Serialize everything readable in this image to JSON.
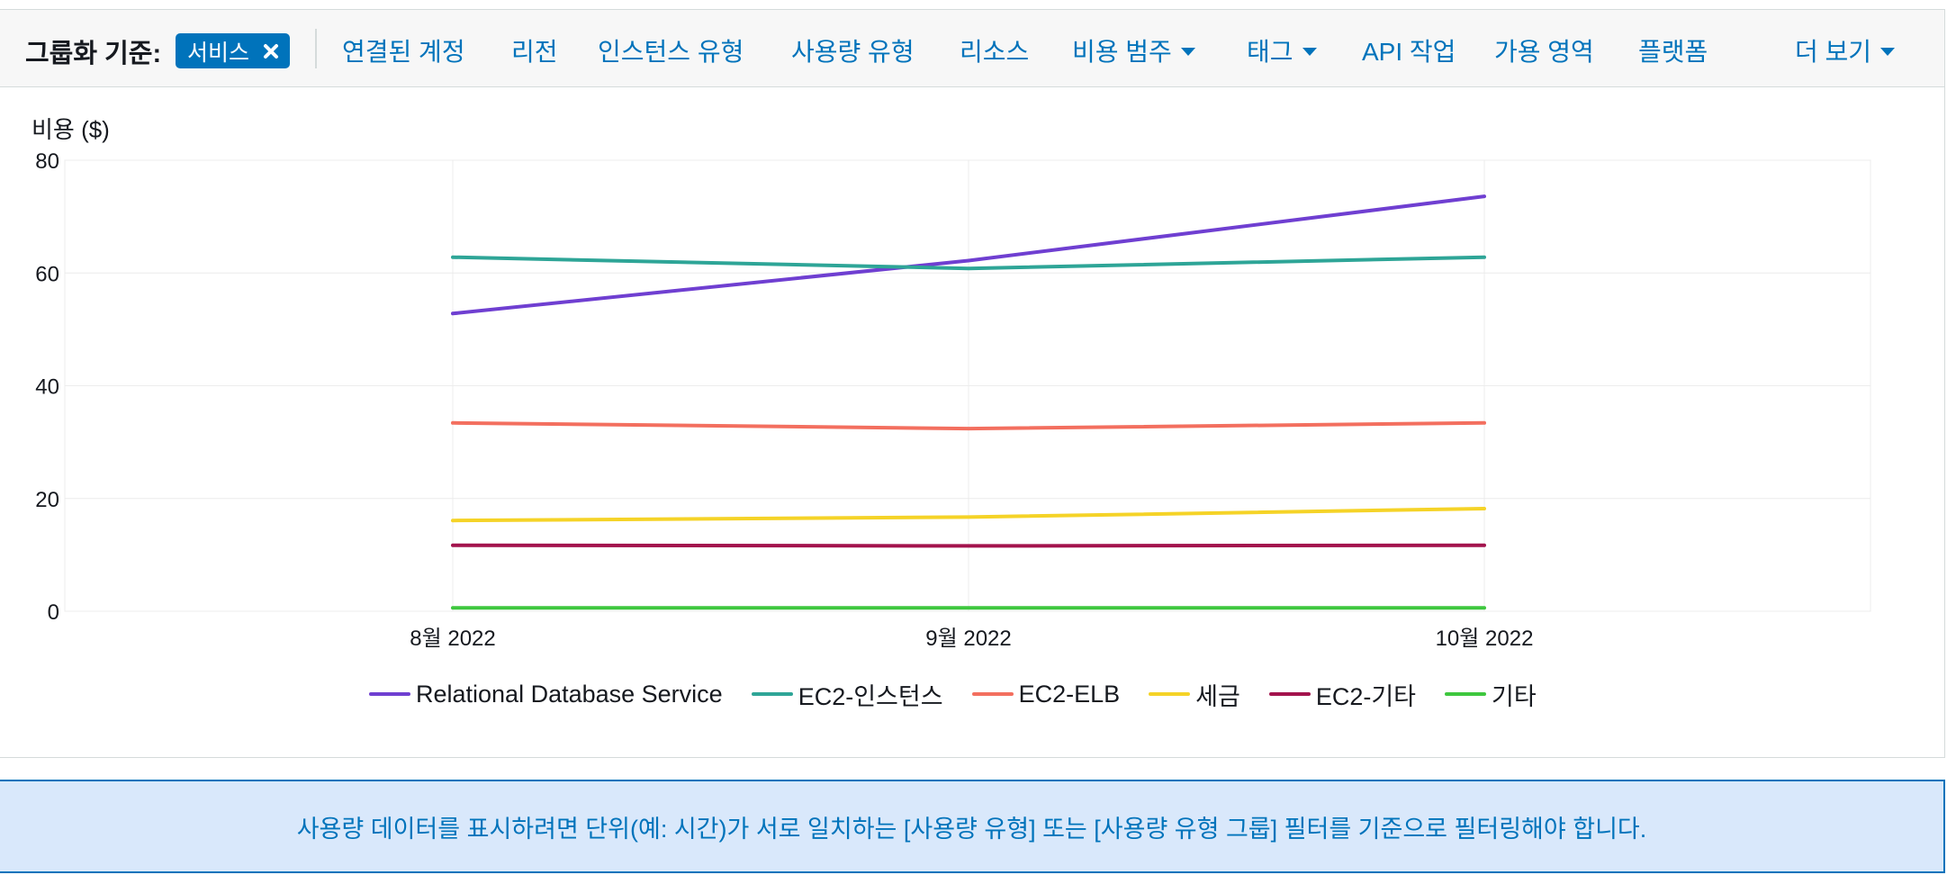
{
  "group_by": {
    "label": "그룹화 기준:",
    "active_chip": "서비스",
    "options": [
      {
        "label": "연결된 계정",
        "dropdown": false
      },
      {
        "label": "리전",
        "dropdown": false
      },
      {
        "label": "인스턴스 유형",
        "dropdown": false
      },
      {
        "label": "사용량 유형",
        "dropdown": false
      },
      {
        "label": "리소스",
        "dropdown": false
      },
      {
        "label": "비용 범주",
        "dropdown": true
      },
      {
        "label": "태그",
        "dropdown": true
      },
      {
        "label": "API 작업",
        "dropdown": false
      },
      {
        "label": "가용 영역",
        "dropdown": false
      },
      {
        "label": "플랫폼",
        "dropdown": false
      }
    ],
    "more_label": "더 보기"
  },
  "chart_data": {
    "type": "line",
    "ylabel": "비용 ($)",
    "ylim": [
      0,
      80
    ],
    "yticks": [
      0,
      20,
      40,
      60,
      80
    ],
    "categories": [
      "8월 2022",
      "9월 2022",
      "10월 2022"
    ],
    "series": [
      {
        "name": "Relational Database Service",
        "color": "#6f3fd1",
        "values": [
          52.8,
          62.2,
          73.6
        ]
      },
      {
        "name": "EC2-인스턴스",
        "color": "#2ea597",
        "values": [
          62.8,
          60.8,
          62.8
        ]
      },
      {
        "name": "EC2-ELB",
        "color": "#f36f5f",
        "values": [
          33.4,
          32.4,
          33.4
        ]
      },
      {
        "name": "세금",
        "color": "#f5d327",
        "values": [
          16.1,
          16.7,
          18.2
        ]
      },
      {
        "name": "EC2-기타",
        "color": "#a3134d",
        "values": [
          11.7,
          11.6,
          11.7
        ]
      },
      {
        "name": "기타",
        "color": "#3ec73e",
        "values": [
          0.6,
          0.6,
          0.6
        ]
      }
    ],
    "grid": true
  },
  "info_message": "사용량 데이터를 표시하려면 단위(예: 시간)가 서로 일치하는 [사용량 유형] 또는 [사용량 유형 그룹] 필터를 기준으로 필터링해야 합니다."
}
